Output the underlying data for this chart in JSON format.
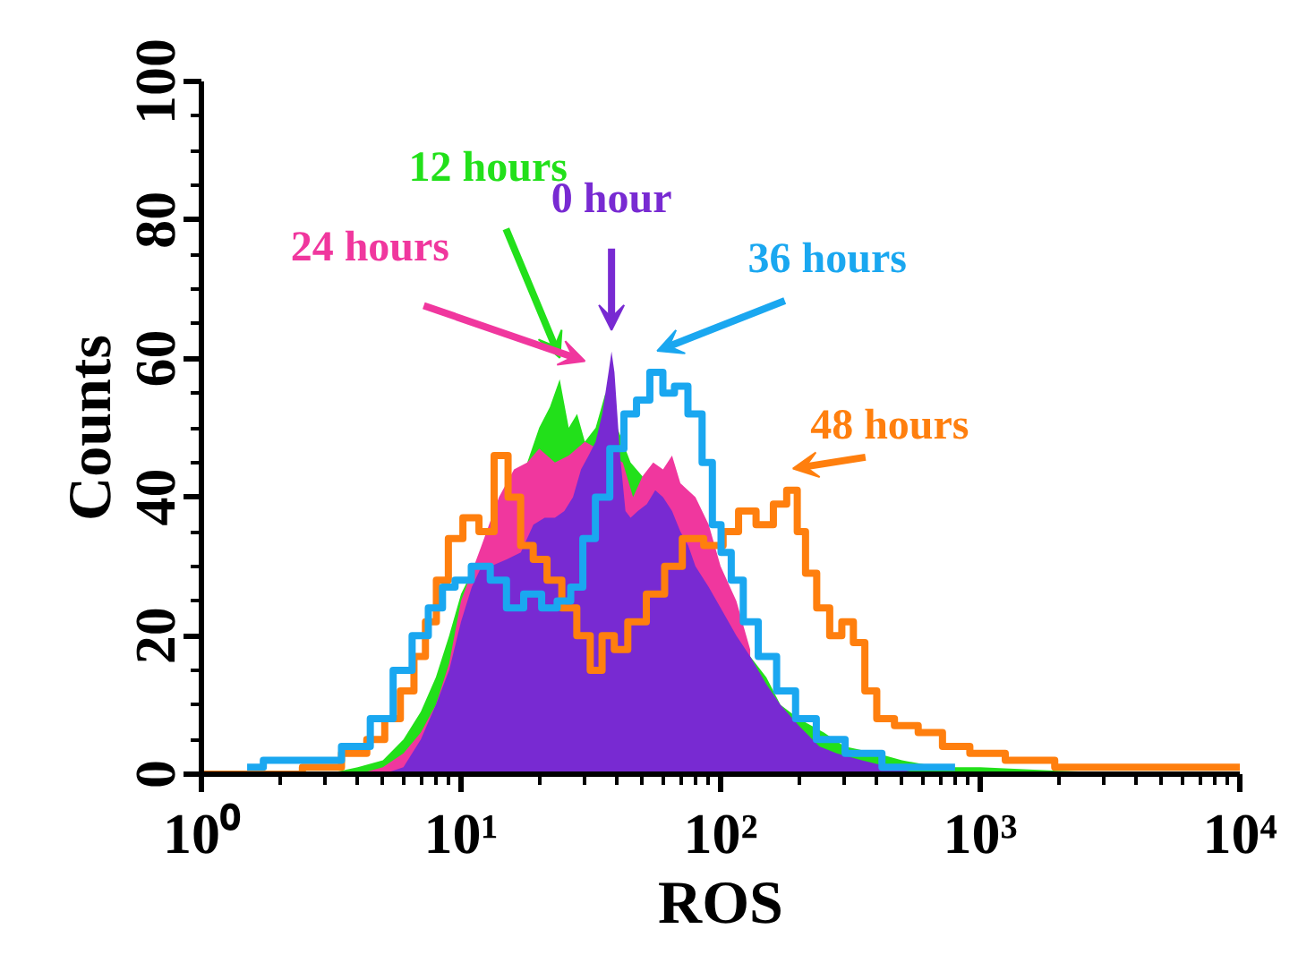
{
  "chart_data": {
    "type": "step",
    "xlabel": "ROS",
    "ylabel": "Counts",
    "log": "x",
    "grid": false,
    "xlim": [
      1,
      10000
    ],
    "xticks": [
      {
        "value": 1,
        "label": "10⁰"
      },
      {
        "value": 10,
        "label": "10¹"
      },
      {
        "value": 100,
        "label": "10²"
      },
      {
        "value": 1000,
        "label": "10³"
      },
      {
        "value": 10000,
        "label": "10⁴"
      }
    ],
    "ylim": [
      0,
      100
    ],
    "yticks": [
      0,
      20,
      40,
      60,
      80,
      100
    ],
    "series": [
      {
        "name": "48 hours",
        "color": "#ff7f0e",
        "x": [
          1,
          2,
          3,
          4,
          4.7,
          5.5,
          6.2,
          7,
          7.6,
          8.5,
          9.4,
          11,
          12.5,
          14.4,
          16,
          18,
          20,
          23,
          26,
          30,
          33,
          37,
          41,
          47,
          57,
          65,
          78,
          95,
          110,
          125,
          150,
          170,
          190,
          205,
          220,
          250,
          277,
          310,
          340,
          380,
          420,
          520,
          640,
          800,
          1040,
          1500,
          2500,
          5000,
          10000
        ],
        "values": [
          0,
          0,
          1,
          3,
          5,
          8,
          12,
          17,
          22,
          28,
          34,
          37,
          35,
          46,
          40,
          33,
          31,
          28,
          24,
          20,
          15,
          20,
          18,
          22,
          26,
          30,
          34,
          33,
          35,
          38,
          36,
          39,
          41,
          35,
          29,
          24,
          20,
          22,
          19,
          12,
          8,
          7,
          6,
          4,
          3,
          2,
          1,
          1,
          1
        ]
      },
      {
        "name": "36 hours",
        "color": "#1aa7f0",
        "x": [
          1.5,
          2,
          3,
          4,
          5,
          6,
          7,
          8,
          9,
          10,
          12,
          14,
          16,
          19,
          22,
          25,
          28,
          31,
          35,
          40,
          45,
          50,
          57,
          63,
          70,
          80,
          90,
          96,
          105,
          115,
          130,
          150,
          180,
          210,
          260,
          350,
          500,
          800
        ],
        "values": [
          1,
          2,
          2,
          4,
          8,
          15,
          20,
          24,
          27,
          28,
          30,
          28,
          24,
          26,
          24,
          25,
          27,
          34,
          40,
          47,
          52,
          54,
          58,
          55,
          56,
          52,
          45,
          36,
          32,
          28,
          22,
          17,
          12,
          8,
          5,
          3,
          1,
          1
        ]
      },
      {
        "name": "12 hours",
        "type": "area",
        "color": "#22e01a",
        "x": [
          3,
          4,
          5,
          6,
          7,
          8,
          9,
          10,
          12,
          14,
          16,
          18,
          20,
          22,
          24,
          26,
          28,
          30,
          33,
          36,
          40,
          45,
          50,
          55,
          60,
          65,
          70,
          80,
          90,
          100,
          115,
          130,
          150,
          170,
          200,
          250,
          300,
          400,
          500,
          700,
          1000,
          2000,
          5000
        ],
        "values": [
          0,
          1,
          2,
          5,
          9,
          14,
          20,
          26,
          32,
          null,
          null,
          45,
          50,
          53,
          57,
          50,
          52,
          48,
          50,
          55,
          50,
          45,
          43,
          null,
          null,
          null,
          null,
          null,
          null,
          null,
          null,
          17,
          14,
          10,
          8,
          6,
          4,
          3,
          2,
          1,
          1,
          0.5,
          0
        ]
      },
      {
        "name": "24 hours",
        "type": "area",
        "color": "#f0379e",
        "x": [
          4,
          5,
          6,
          7,
          8,
          9,
          10,
          12,
          14,
          16,
          18,
          20,
          23,
          26,
          30,
          34,
          38,
          42,
          46,
          50,
          55,
          60,
          65,
          70,
          80,
          90,
          100,
          115,
          130
        ],
        "values": [
          0,
          1,
          3,
          6,
          10,
          16,
          25,
          33,
          40,
          44,
          45,
          47,
          45,
          46,
          48,
          null,
          null,
          45,
          40,
          43,
          45,
          44,
          46,
          42,
          40,
          36,
          30,
          25,
          18
        ]
      },
      {
        "name": "0 hour",
        "type": "area",
        "color": "#782ad2",
        "x": [
          5,
          6,
          7,
          8,
          9,
          10,
          11,
          12,
          13,
          15,
          17,
          19,
          21,
          23,
          25,
          27,
          29,
          31,
          33,
          35,
          37,
          38,
          39,
          41,
          43,
          45,
          48,
          52,
          56,
          60,
          65,
          70,
          75,
          80,
          90,
          100,
          115,
          130,
          150,
          170,
          200,
          240,
          280,
          350,
          450,
          600
        ],
        "values": [
          0,
          1,
          5,
          10,
          15,
          22,
          27,
          30,
          30,
          31,
          32,
          36,
          37,
          37,
          38,
          40,
          44,
          46,
          48,
          52,
          58,
          61,
          58,
          46,
          38,
          37,
          38,
          39,
          41,
          40,
          38,
          35,
          33,
          30,
          27,
          24,
          20,
          17,
          13,
          10,
          7,
          4,
          3,
          2,
          1,
          0
        ]
      }
    ]
  }
}
